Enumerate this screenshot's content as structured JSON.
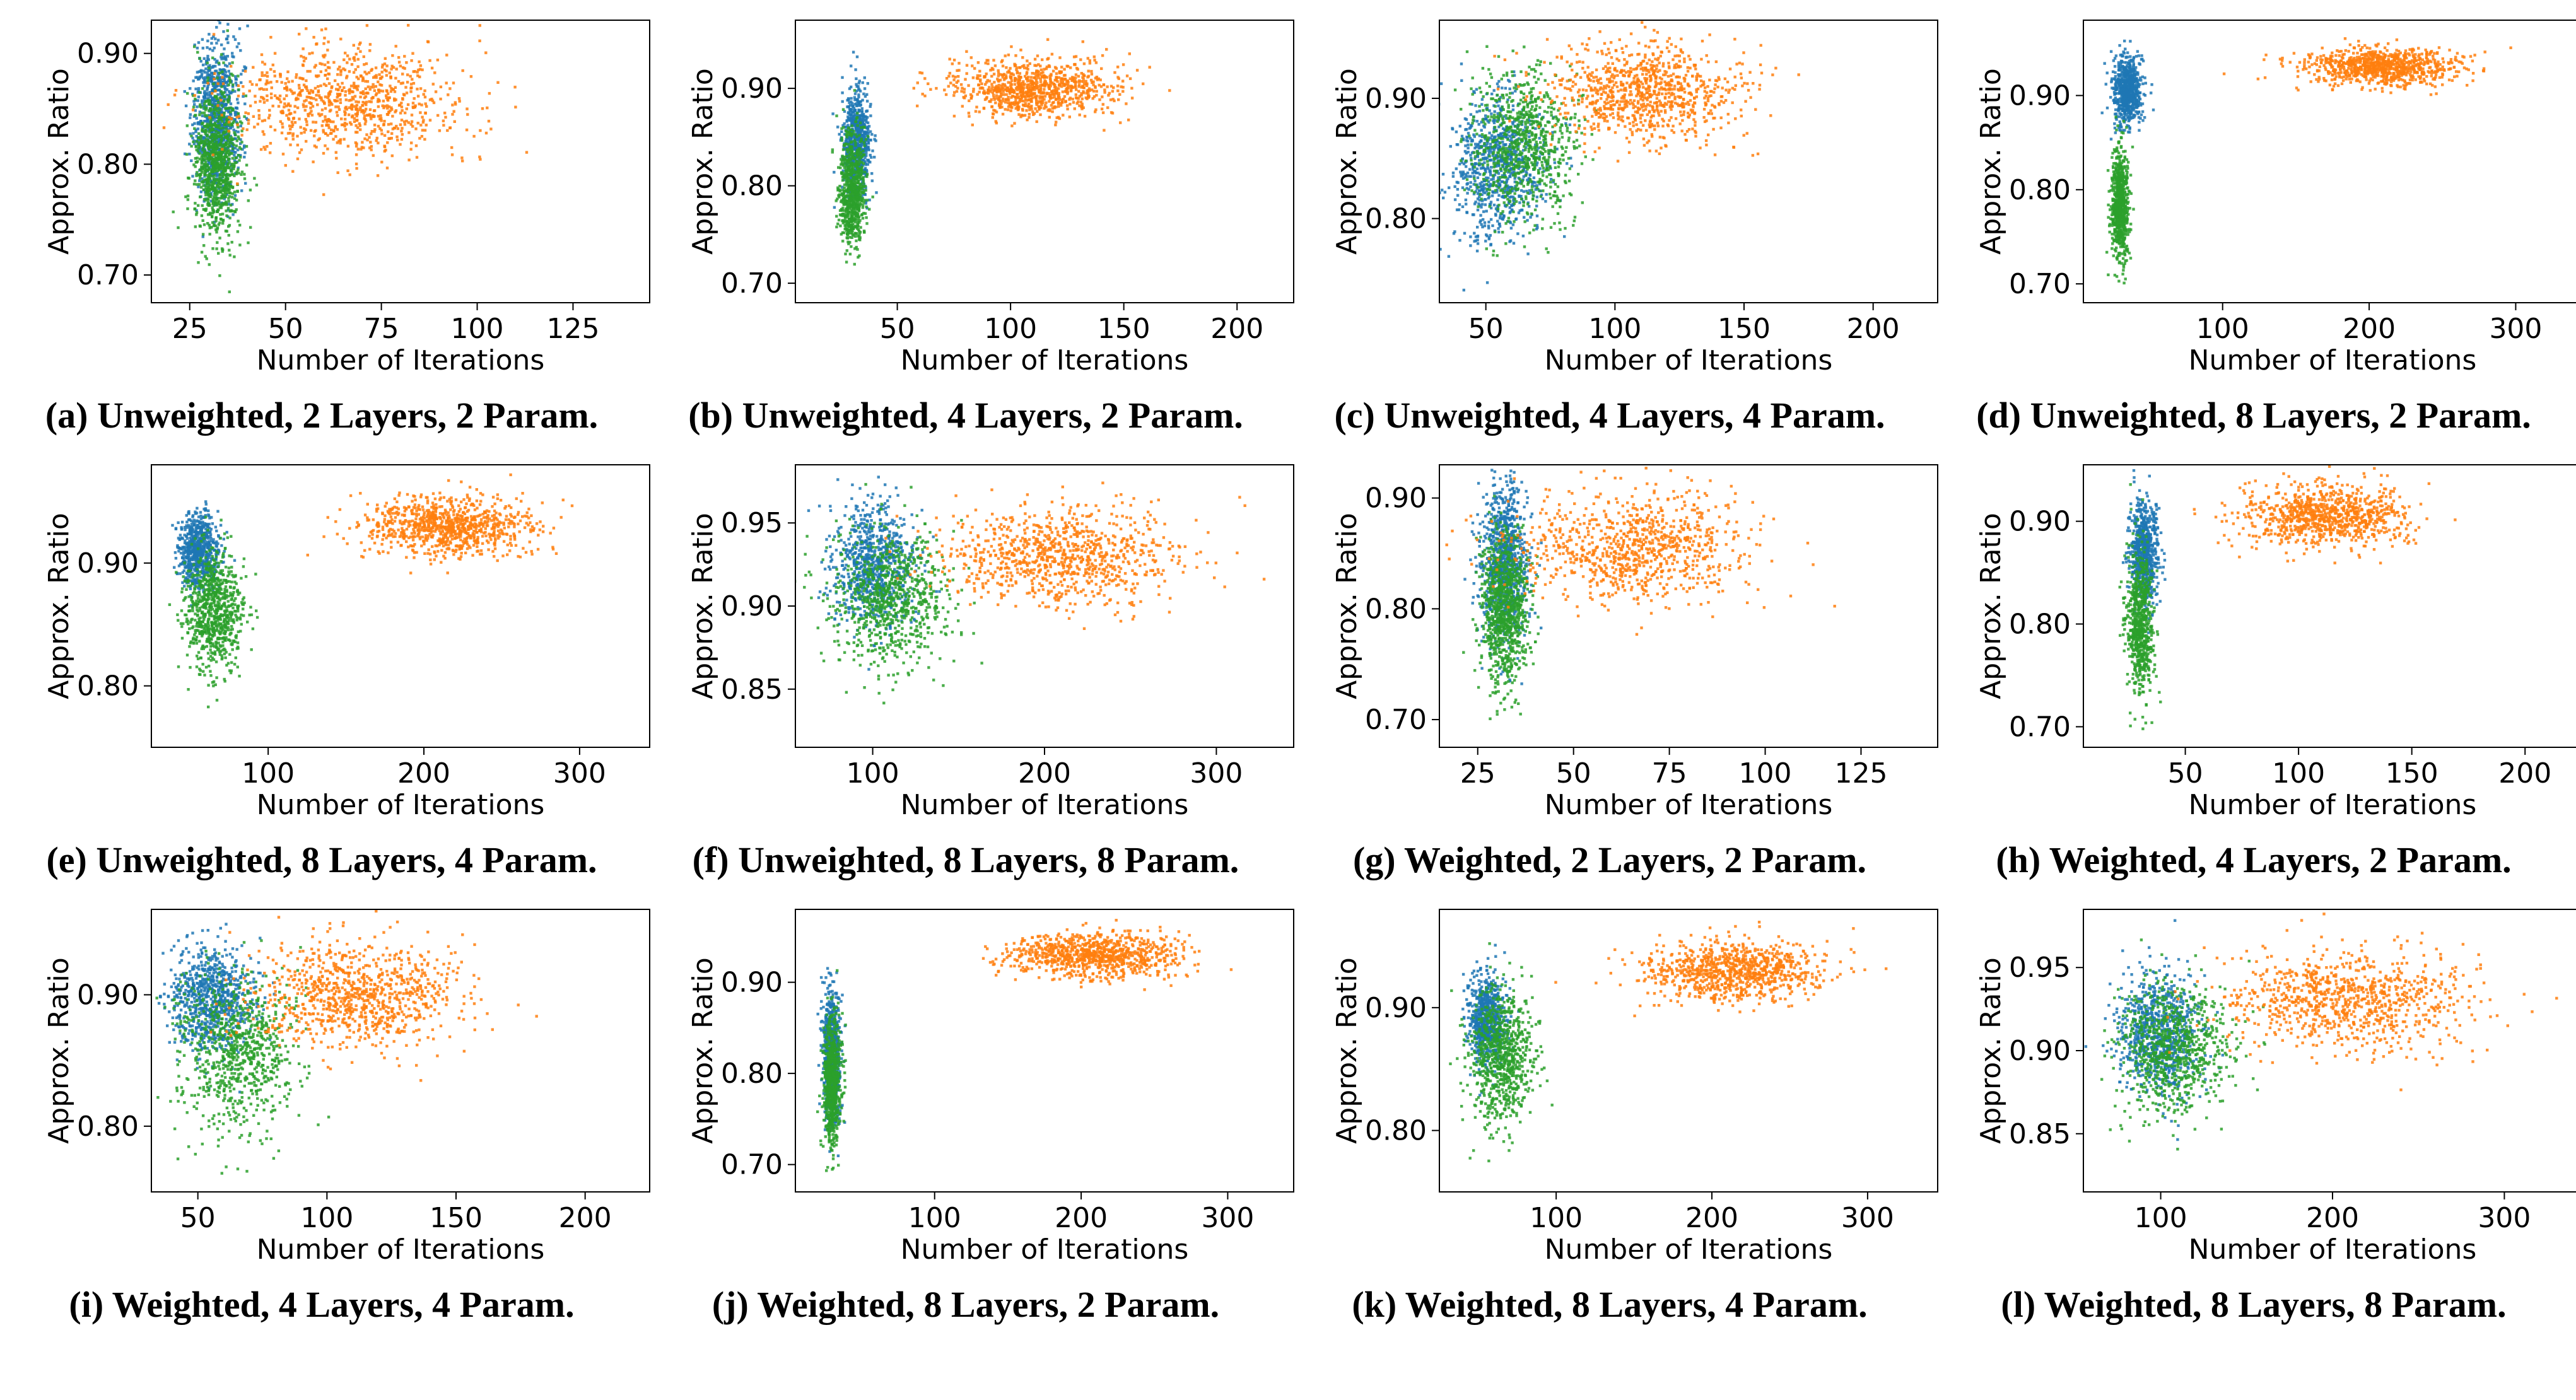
{
  "colors": {
    "blue": "#1f77b4",
    "orange": "#ff7f0e",
    "green": "#2ca02c"
  },
  "chart_data": [
    {
      "type": "scatter",
      "caption": "(a) Unweighted, 2 Layers, 2 Param.",
      "xlabel": "Number of Iterations",
      "ylabel": "Approx. Ratio",
      "xlim": [
        15,
        145
      ],
      "ylim": [
        0.675,
        0.93
      ],
      "xticks": [
        25,
        50,
        75,
        100,
        125
      ],
      "yticks": [
        0.7,
        0.8,
        0.9
      ],
      "ytick_labels": [
        "0.70",
        "0.80",
        "0.90"
      ],
      "grid": false,
      "series": [
        {
          "color": "blue",
          "x_center": 32,
          "x_spread": 3,
          "y_center": 0.84,
          "y_spread": 0.035,
          "n": 900
        },
        {
          "color": "green",
          "x_center": 32,
          "x_spread": 3,
          "y_center": 0.8,
          "y_spread": 0.035,
          "n": 900
        },
        {
          "color": "orange",
          "x_center": 65,
          "x_spread": 15,
          "y_center": 0.855,
          "y_spread": 0.025,
          "n": 900
        }
      ]
    },
    {
      "type": "scatter",
      "caption": "(b) Unweighted, 4 Layers, 2 Param.",
      "xlabel": "Number of Iterations",
      "ylabel": "Approx. Ratio",
      "xlim": [
        5,
        225
      ],
      "ylim": [
        0.68,
        0.97
      ],
      "xticks": [
        50,
        100,
        150,
        200
      ],
      "yticks": [
        0.7,
        0.8,
        0.9
      ],
      "ytick_labels": [
        "0.70",
        "0.80",
        "0.90"
      ],
      "grid": false,
      "series": [
        {
          "color": "blue",
          "x_center": 32,
          "x_spread": 3,
          "y_center": 0.845,
          "y_spread": 0.025,
          "n": 700
        },
        {
          "color": "green",
          "x_center": 30,
          "x_spread": 3,
          "y_center": 0.795,
          "y_spread": 0.03,
          "n": 700
        },
        {
          "color": "orange",
          "x_center": 110,
          "x_spread": 18,
          "y_center": 0.9,
          "y_spread": 0.015,
          "n": 900
        }
      ]
    },
    {
      "type": "scatter",
      "caption": "(c) Unweighted, 4 Layers, 4 Param.",
      "xlabel": "Number of Iterations",
      "ylabel": "Approx. Ratio",
      "xlim": [
        32,
        225
      ],
      "ylim": [
        0.73,
        0.965
      ],
      "xticks": [
        50,
        100,
        150,
        200
      ],
      "yticks": [
        0.8,
        0.9
      ],
      "ytick_labels": [
        "0.80",
        "0.90"
      ],
      "grid": false,
      "series": [
        {
          "color": "blue",
          "x_center": 55,
          "x_spread": 9,
          "y_center": 0.845,
          "y_spread": 0.03,
          "n": 800
        },
        {
          "color": "green",
          "x_center": 65,
          "x_spread": 10,
          "y_center": 0.86,
          "y_spread": 0.03,
          "n": 800
        },
        {
          "color": "orange",
          "x_center": 112,
          "x_spread": 18,
          "y_center": 0.905,
          "y_spread": 0.02,
          "n": 900
        }
      ]
    },
    {
      "type": "scatter",
      "caption": "(d) Unweighted, 8 Layers, 2 Param.",
      "xlabel": "Number of Iterations",
      "ylabel": "Approx. Ratio",
      "xlim": [
        5,
        345
      ],
      "ylim": [
        0.68,
        0.98
      ],
      "xticks": [
        100,
        200,
        300
      ],
      "yticks": [
        0.7,
        0.8,
        0.9
      ],
      "ytick_labels": [
        "0.70",
        "0.80",
        "0.90"
      ],
      "grid": false,
      "series": [
        {
          "color": "blue",
          "x_center": 35,
          "x_spread": 5,
          "y_center": 0.905,
          "y_spread": 0.018,
          "n": 700
        },
        {
          "color": "green",
          "x_center": 30,
          "x_spread": 3,
          "y_center": 0.785,
          "y_spread": 0.03,
          "n": 700
        },
        {
          "color": "orange",
          "x_center": 208,
          "x_spread": 25,
          "y_center": 0.93,
          "y_spread": 0.01,
          "n": 900
        }
      ]
    },
    {
      "type": "scatter",
      "caption": "(e) Unweighted, 8 Layers, 4 Param.",
      "xlabel": "Number of Iterations",
      "ylabel": "Approx. Ratio",
      "xlim": [
        25,
        345
      ],
      "ylim": [
        0.75,
        0.98
      ],
      "xticks": [
        100,
        200,
        300
      ],
      "yticks": [
        0.8,
        0.9
      ],
      "ytick_labels": [
        "0.80",
        "0.90"
      ],
      "grid": false,
      "series": [
        {
          "color": "blue",
          "x_center": 55,
          "x_spread": 6,
          "y_center": 0.91,
          "y_spread": 0.015,
          "n": 700
        },
        {
          "color": "green",
          "x_center": 65,
          "x_spread": 9,
          "y_center": 0.86,
          "y_spread": 0.025,
          "n": 800
        },
        {
          "color": "orange",
          "x_center": 215,
          "x_spread": 28,
          "y_center": 0.93,
          "y_spread": 0.012,
          "n": 900
        }
      ]
    },
    {
      "type": "scatter",
      "caption": "(f) Unweighted, 8 Layers, 8 Param.",
      "xlabel": "Number of Iterations",
      "ylabel": "Approx. Ratio",
      "xlim": [
        55,
        345
      ],
      "ylim": [
        0.815,
        0.985
      ],
      "xticks": [
        100,
        200,
        300
      ],
      "yticks": [
        0.85,
        0.9,
        0.95
      ],
      "ytick_labels": [
        "0.85",
        "0.90",
        "0.95"
      ],
      "grid": false,
      "series": [
        {
          "color": "blue",
          "x_center": 100,
          "x_spread": 12,
          "y_center": 0.925,
          "y_spread": 0.018,
          "n": 800
        },
        {
          "color": "green",
          "x_center": 110,
          "x_spread": 18,
          "y_center": 0.905,
          "y_spread": 0.02,
          "n": 800
        },
        {
          "color": "orange",
          "x_center": 210,
          "x_spread": 35,
          "y_center": 0.93,
          "y_spread": 0.015,
          "n": 900
        }
      ]
    },
    {
      "type": "scatter",
      "caption": "(g) Weighted, 2 Layers, 2 Param.",
      "xlabel": "Number of Iterations",
      "ylabel": "Approx. Ratio",
      "xlim": [
        15,
        145
      ],
      "ylim": [
        0.675,
        0.93
      ],
      "xticks": [
        25,
        50,
        75,
        100,
        125
      ],
      "yticks": [
        0.7,
        0.8,
        0.9
      ],
      "ytick_labels": [
        "0.70",
        "0.80",
        "0.90"
      ],
      "grid": false,
      "series": [
        {
          "color": "blue",
          "x_center": 32,
          "x_spread": 3,
          "y_center": 0.84,
          "y_spread": 0.035,
          "n": 900
        },
        {
          "color": "green",
          "x_center": 32,
          "x_spread": 3,
          "y_center": 0.8,
          "y_spread": 0.035,
          "n": 900
        },
        {
          "color": "orange",
          "x_center": 65,
          "x_spread": 15,
          "y_center": 0.855,
          "y_spread": 0.025,
          "n": 900
        }
      ]
    },
    {
      "type": "scatter",
      "caption": "(h) Weighted, 4 Layers, 2 Param.",
      "xlabel": "Number of Iterations",
      "ylabel": "Approx. Ratio",
      "xlim": [
        5,
        225
      ],
      "ylim": [
        0.68,
        0.955
      ],
      "xticks": [
        50,
        100,
        150,
        200
      ],
      "yticks": [
        0.7,
        0.8,
        0.9
      ],
      "ytick_labels": [
        "0.70",
        "0.80",
        "0.90"
      ],
      "grid": false,
      "series": [
        {
          "color": "blue",
          "x_center": 32,
          "x_spread": 3,
          "y_center": 0.87,
          "y_spread": 0.025,
          "n": 700
        },
        {
          "color": "green",
          "x_center": 30,
          "x_spread": 3,
          "y_center": 0.8,
          "y_spread": 0.035,
          "n": 700
        },
        {
          "color": "orange",
          "x_center": 112,
          "x_spread": 18,
          "y_center": 0.905,
          "y_spread": 0.015,
          "n": 900
        }
      ]
    },
    {
      "type": "scatter",
      "caption": "(i) Weighted, 4 Layers, 4 Param.",
      "xlabel": "Number of Iterations",
      "ylabel": "Approx. Ratio",
      "xlim": [
        32,
        225
      ],
      "ylim": [
        0.75,
        0.965
      ],
      "xticks": [
        50,
        100,
        150,
        200
      ],
      "yticks": [
        0.8,
        0.9
      ],
      "ytick_labels": [
        "0.80",
        "0.90"
      ],
      "grid": false,
      "series": [
        {
          "color": "blue",
          "x_center": 55,
          "x_spread": 8,
          "y_center": 0.895,
          "y_spread": 0.02,
          "n": 800
        },
        {
          "color": "green",
          "x_center": 65,
          "x_spread": 12,
          "y_center": 0.855,
          "y_spread": 0.03,
          "n": 800
        },
        {
          "color": "orange",
          "x_center": 112,
          "x_spread": 20,
          "y_center": 0.9,
          "y_spread": 0.02,
          "n": 900
        }
      ]
    },
    {
      "type": "scatter",
      "caption": "(j) Weighted, 8 Layers, 2 Param.",
      "xlabel": "Number of Iterations",
      "ylabel": "Approx. Ratio",
      "xlim": [
        5,
        345
      ],
      "ylim": [
        0.67,
        0.98
      ],
      "xticks": [
        100,
        200,
        300
      ],
      "yticks": [
        0.7,
        0.8,
        0.9
      ],
      "ytick_labels": [
        "0.70",
        "0.80",
        "0.90"
      ],
      "grid": false,
      "series": [
        {
          "color": "blue",
          "x_center": 30,
          "x_spread": 3,
          "y_center": 0.82,
          "y_spread": 0.035,
          "n": 700
        },
        {
          "color": "green",
          "x_center": 30,
          "x_spread": 3,
          "y_center": 0.79,
          "y_spread": 0.035,
          "n": 700
        },
        {
          "color": "orange",
          "x_center": 210,
          "x_spread": 28,
          "y_center": 0.93,
          "y_spread": 0.012,
          "n": 900
        }
      ]
    },
    {
      "type": "scatter",
      "caption": "(k) Weighted, 8 Layers, 4 Param.",
      "xlabel": "Number of Iterations",
      "ylabel": "Approx. Ratio",
      "xlim": [
        25,
        345
      ],
      "ylim": [
        0.75,
        0.98
      ],
      "xticks": [
        100,
        200,
        300
      ],
      "yticks": [
        0.8,
        0.9
      ],
      "ytick_labels": [
        "0.80",
        "0.90"
      ],
      "grid": false,
      "series": [
        {
          "color": "blue",
          "x_center": 55,
          "x_spread": 6,
          "y_center": 0.89,
          "y_spread": 0.018,
          "n": 700
        },
        {
          "color": "green",
          "x_center": 65,
          "x_spread": 10,
          "y_center": 0.86,
          "y_spread": 0.028,
          "n": 800
        },
        {
          "color": "orange",
          "x_center": 215,
          "x_spread": 28,
          "y_center": 0.93,
          "y_spread": 0.012,
          "n": 900
        }
      ]
    },
    {
      "type": "scatter",
      "caption": "(l) Weighted, 8 Layers, 8 Param.",
      "xlabel": "Number of Iterations",
      "ylabel": "Approx. Ratio",
      "xlim": [
        55,
        345
      ],
      "ylim": [
        0.815,
        0.985
      ],
      "xticks": [
        100,
        200,
        300
      ],
      "yticks": [
        0.85,
        0.9,
        0.95
      ],
      "ytick_labels": [
        "0.85",
        "0.90",
        "0.95"
      ],
      "grid": false,
      "series": [
        {
          "color": "blue",
          "x_center": 100,
          "x_spread": 12,
          "y_center": 0.91,
          "y_spread": 0.018,
          "n": 800
        },
        {
          "color": "green",
          "x_center": 108,
          "x_spread": 16,
          "y_center": 0.9,
          "y_spread": 0.02,
          "n": 800
        },
        {
          "color": "orange",
          "x_center": 210,
          "x_spread": 35,
          "y_center": 0.93,
          "y_spread": 0.015,
          "n": 900
        }
      ]
    }
  ]
}
